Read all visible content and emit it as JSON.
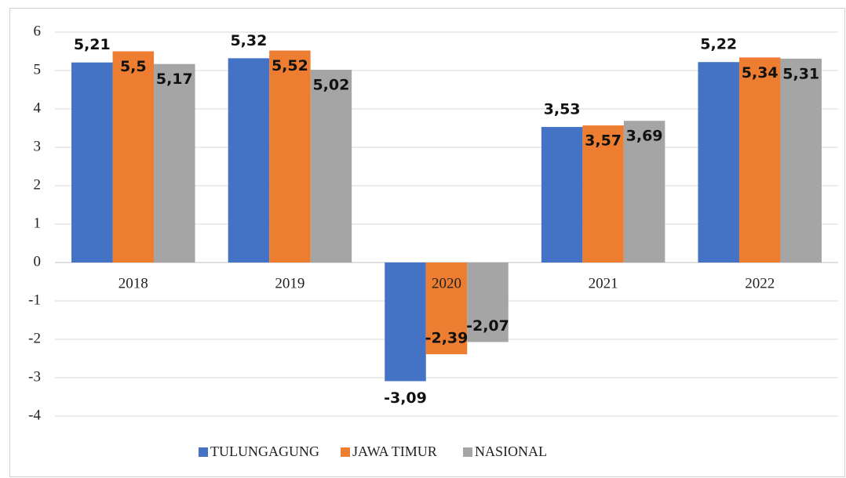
{
  "chart_data": {
    "type": "bar",
    "categories": [
      "2018",
      "2019",
      "2020",
      "2021",
      "2022"
    ],
    "series": [
      {
        "name": "TULUNGAGUNG",
        "color": "#4472c4",
        "values": [
          5.21,
          5.32,
          -3.09,
          3.53,
          5.22
        ],
        "value_labels": [
          "5,21",
          "5,32",
          "-3,09",
          "3,53",
          "5,22"
        ]
      },
      {
        "name": "JAWA TIMUR",
        "color": "#ed7d31",
        "values": [
          5.5,
          5.52,
          -2.39,
          3.57,
          5.34
        ],
        "value_labels": [
          "5,5",
          "5,52",
          "-2,39",
          "3,57",
          "5,34"
        ]
      },
      {
        "name": "NASIONAL",
        "color": "#a5a5a5",
        "values": [
          5.17,
          5.02,
          -2.07,
          3.69,
          5.31
        ],
        "value_labels": [
          "5,17",
          "5,02",
          "-2,07",
          "3,69",
          "5,31"
        ]
      }
    ],
    "ylim": [
      -4,
      6
    ],
    "yticks": [
      -4,
      -3,
      -2,
      -1,
      0,
      1,
      2,
      3,
      4,
      5,
      6
    ],
    "grid": true,
    "legend": "bottom"
  }
}
